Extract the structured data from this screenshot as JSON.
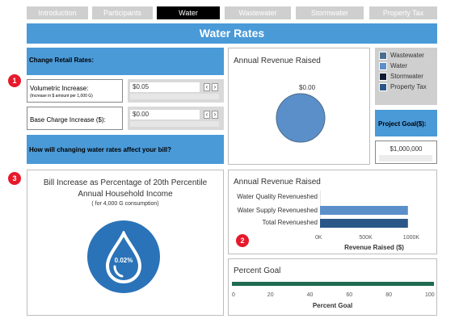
{
  "tabs": [
    {
      "label": "Introduction",
      "active": false
    },
    {
      "label": "Participants",
      "active": false
    },
    {
      "label": "Water",
      "active": true
    },
    {
      "label": "Wastewater",
      "active": false
    },
    {
      "label": "Stormwater",
      "active": false
    },
    {
      "label": "Property Tax",
      "active": false
    }
  ],
  "banner_title": "Water Rates",
  "markers": [
    "1",
    "2",
    "3"
  ],
  "controls": {
    "heading": "Change Retail Rates:",
    "volumetric": {
      "label": "Volumetric Increase:",
      "sublabel": "(Increase in $ amount per 1,000 G)",
      "value": "$0.05"
    },
    "base_charge": {
      "label": "Base Charge Increase ($):",
      "value": "$0.00"
    },
    "question": "How will changing water rates affect your bill?",
    "prev_icon": "chevron-left-icon",
    "next_icon": "chevron-right-icon"
  },
  "legend": {
    "items": [
      {
        "label": "Wastewater",
        "color": "#4b6e8f"
      },
      {
        "label": "Water",
        "color": "#5b8fc9"
      },
      {
        "label": "Stormwater",
        "color": "#0e1c33"
      },
      {
        "label": "Property Tax",
        "color": "#2a5788"
      }
    ]
  },
  "project_goal": {
    "label": "Project Goal($):",
    "value": "$1,000,000"
  },
  "bill_increase": {
    "title_line1": "Bill Increase as Percentage of 20th Percentile",
    "title_line2": "Annual Household Income",
    "subtitle": "( for 4,000 G consumption)",
    "value": "0.02%",
    "icon": "water-drop-icon",
    "accent": "#2a73b8"
  },
  "chart_data": [
    {
      "type": "pie",
      "title": "Annual Revenue Raised",
      "data_label": "$0.00",
      "slices": [
        {
          "label": "Water",
          "value": 1,
          "color": "#5b8fc9"
        }
      ]
    },
    {
      "type": "bar",
      "orientation": "horizontal",
      "title": "Annual Revenue Raised",
      "categories": [
        "Water Quality Revenueshed",
        "Water Supply Revenueshed",
        "Total Revenueshed"
      ],
      "values": [
        0,
        1000000,
        1000000
      ],
      "colors": [
        "#5b8fc9",
        "#5b8fc9",
        "#2a5788"
      ],
      "xlabel": "Revenue Raised ($)",
      "xlim": [
        0,
        1250000
      ],
      "ticks": [
        {
          "value": 0,
          "label": "0K"
        },
        {
          "value": 500000,
          "label": "500K"
        },
        {
          "value": 1000000,
          "label": "1000K"
        }
      ],
      "grid": false
    },
    {
      "type": "bar",
      "orientation": "horizontal",
      "title": "Percent Goal",
      "categories": [
        ""
      ],
      "values": [
        100
      ],
      "color": "#1e6b52",
      "xlabel": "Percent Goal",
      "xlim": [
        0,
        100
      ],
      "ticks": [
        {
          "value": 0,
          "label": "0"
        },
        {
          "value": 20,
          "label": "20"
        },
        {
          "value": 40,
          "label": "40"
        },
        {
          "value": 60,
          "label": "60"
        },
        {
          "value": 80,
          "label": "80"
        },
        {
          "value": 100,
          "label": "100"
        }
      ],
      "grid": false
    }
  ]
}
